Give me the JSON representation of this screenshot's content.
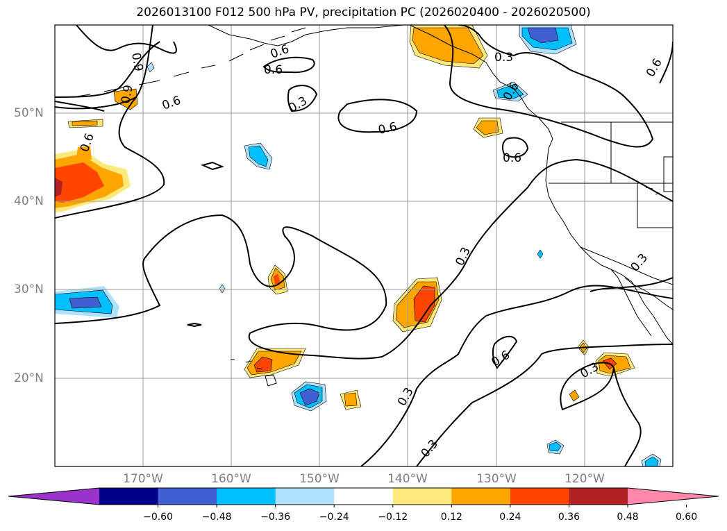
{
  "title": "2026013100 F012 500 hPa PV, precipitation PC (2026020400 - 2026020500)",
  "lat_labels": [
    "50°N",
    "40°N",
    "30°N",
    "20°N"
  ],
  "lon_labels": [
    "170°W",
    "160°W",
    "150°W",
    "140°W",
    "130°W",
    "120°W"
  ],
  "contour_labels": [
    "0.6",
    "0.6",
    "0.6",
    "0.3",
    "0.6",
    "0.6",
    "0.3",
    "0.6",
    "0.6",
    "0.3",
    "0.3",
    "0.6",
    "0.3",
    "0.3",
    "0.3",
    "0.6",
    "0.9",
    "0.9"
  ],
  "colorbar": {
    "tick_labels": [
      "−0.60",
      "−0.48",
      "−0.36",
      "−0.24",
      "−0.12",
      "0.12",
      "0.24",
      "0.36",
      "0.48",
      "0.60"
    ],
    "colors": [
      "#9933cc",
      "#00008b",
      "#3f5fd3",
      "#00bfff",
      "#b0e2ff",
      "#ffffff",
      "#ffe87c",
      "#ffa500",
      "#ff4500",
      "#b22222",
      "#ff88aa"
    ]
  }
}
